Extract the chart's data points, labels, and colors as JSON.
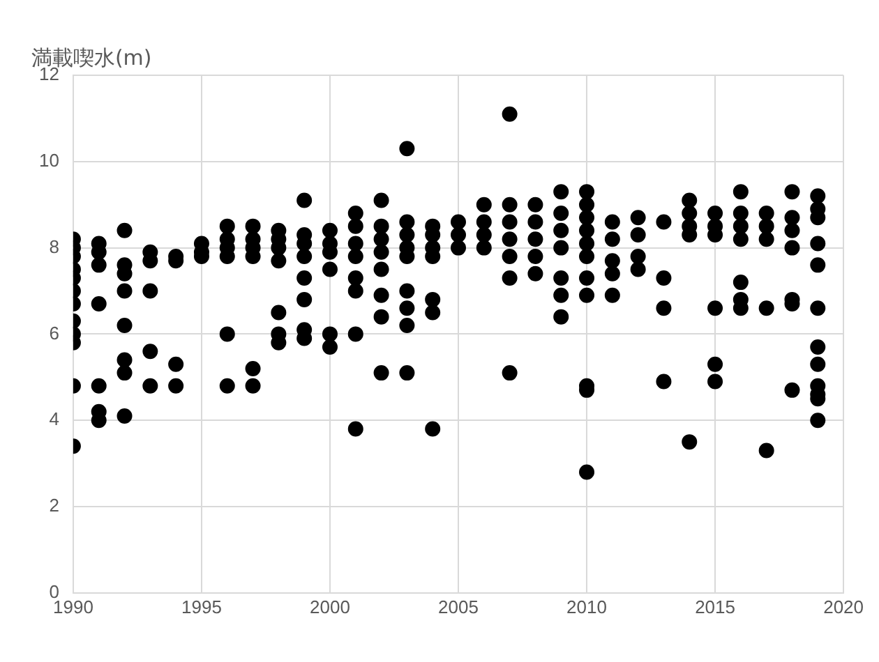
{
  "chart_data": {
    "type": "scatter",
    "ylabel": "満載喫水(m)",
    "x": [
      1990,
      1990,
      1990,
      1990,
      1990,
      1990,
      1990,
      1990,
      1990,
      1990,
      1990,
      1990,
      1991,
      1991,
      1991,
      1991,
      1991,
      1991,
      1991,
      1992,
      1992,
      1992,
      1992,
      1992,
      1992,
      1992,
      1992,
      1993,
      1993,
      1993,
      1993,
      1993,
      1994,
      1994,
      1994,
      1994,
      1995,
      1995,
      1995,
      1996,
      1996,
      1996,
      1996,
      1996,
      1996,
      1997,
      1997,
      1997,
      1997,
      1997,
      1997,
      1998,
      1998,
      1998,
      1998,
      1998,
      1998,
      1998,
      1999,
      1999,
      1999,
      1999,
      1999,
      1999,
      1999,
      1999,
      2000,
      2000,
      2000,
      2000,
      2000,
      2000,
      2001,
      2001,
      2001,
      2001,
      2001,
      2001,
      2001,
      2001,
      2002,
      2002,
      2002,
      2002,
      2002,
      2002,
      2002,
      2002,
      2003,
      2003,
      2003,
      2003,
      2003,
      2003,
      2003,
      2003,
      2003,
      2004,
      2004,
      2004,
      2004,
      2004,
      2004,
      2004,
      2005,
      2005,
      2005,
      2006,
      2006,
      2006,
      2006,
      2007,
      2007,
      2007,
      2007,
      2007,
      2007,
      2007,
      2008,
      2008,
      2008,
      2008,
      2008,
      2009,
      2009,
      2009,
      2009,
      2009,
      2009,
      2009,
      2010,
      2010,
      2010,
      2010,
      2010,
      2010,
      2010,
      2010,
      2010,
      2010,
      2010,
      2011,
      2011,
      2011,
      2011,
      2011,
      2012,
      2012,
      2012,
      2012,
      2013,
      2013,
      2013,
      2013,
      2014,
      2014,
      2014,
      2014,
      2014,
      2015,
      2015,
      2015,
      2015,
      2015,
      2015,
      2016,
      2016,
      2016,
      2016,
      2016,
      2016,
      2016,
      2017,
      2017,
      2017,
      2017,
      2017,
      2018,
      2018,
      2018,
      2018,
      2018,
      2018,
      2018,
      2019,
      2019,
      2019,
      2019,
      2019,
      2019,
      2019,
      2019,
      2019,
      2019,
      2019,
      2019
    ],
    "values": [
      8.2,
      8.0,
      7.8,
      7.5,
      7.3,
      7.0,
      6.7,
      6.3,
      6.0,
      5.8,
      4.8,
      3.4,
      8.1,
      7.9,
      7.6,
      6.7,
      4.8,
      4.2,
      4.0,
      8.4,
      7.6,
      7.4,
      7.0,
      6.2,
      5.4,
      5.1,
      4.1,
      7.9,
      7.7,
      7.0,
      5.6,
      4.8,
      7.8,
      7.7,
      5.3,
      4.8,
      8.1,
      7.9,
      7.8,
      8.5,
      8.2,
      8.0,
      7.8,
      6.0,
      4.8,
      8.5,
      8.2,
      8.0,
      7.8,
      5.2,
      4.8,
      8.4,
      8.2,
      8.0,
      7.7,
      6.5,
      6.0,
      5.8,
      9.1,
      8.3,
      8.1,
      7.8,
      7.3,
      6.8,
      6.1,
      5.9,
      8.4,
      8.1,
      7.9,
      7.5,
      6.0,
      5.7,
      8.8,
      8.5,
      8.1,
      7.8,
      7.3,
      7.0,
      6.0,
      3.8,
      9.1,
      8.5,
      8.2,
      7.9,
      7.5,
      6.9,
      6.4,
      5.1,
      10.3,
      8.6,
      8.3,
      8.0,
      7.8,
      7.0,
      6.6,
      6.2,
      5.1,
      8.5,
      8.3,
      8.0,
      7.8,
      6.8,
      6.5,
      3.8,
      8.6,
      8.3,
      8.0,
      9.0,
      8.6,
      8.3,
      8.0,
      11.1,
      9.0,
      8.6,
      8.2,
      7.8,
      7.3,
      5.1,
      9.0,
      8.6,
      8.2,
      7.8,
      7.4,
      9.3,
      8.8,
      8.4,
      8.0,
      7.3,
      6.9,
      6.4,
      9.3,
      9.0,
      8.7,
      8.4,
      8.1,
      7.8,
      7.3,
      6.9,
      4.8,
      4.7,
      2.8,
      8.6,
      8.2,
      7.7,
      7.4,
      6.9,
      8.7,
      8.3,
      7.8,
      7.5,
      8.6,
      7.3,
      6.6,
      4.9,
      9.1,
      8.8,
      8.5,
      8.3,
      3.5,
      8.8,
      8.5,
      8.3,
      6.6,
      5.3,
      4.9,
      9.3,
      8.8,
      8.5,
      8.2,
      7.2,
      6.8,
      6.6,
      8.8,
      8.5,
      8.2,
      6.6,
      3.3,
      9.3,
      8.7,
      8.4,
      8.0,
      6.8,
      6.7,
      4.7,
      9.2,
      8.9,
      8.7,
      8.1,
      7.6,
      6.6,
      5.7,
      5.3,
      4.8,
      4.6,
      4.5,
      4.0
    ],
    "color": "#000000",
    "marker": "circle",
    "grid": true,
    "legend": false,
    "xlim": [
      1990,
      2020
    ],
    "xticks": [
      1990,
      1995,
      2000,
      2005,
      2010,
      2015,
      2020
    ],
    "ylim": [
      0,
      12
    ],
    "yticks": [
      0,
      2,
      4,
      6,
      8,
      10,
      12
    ]
  }
}
